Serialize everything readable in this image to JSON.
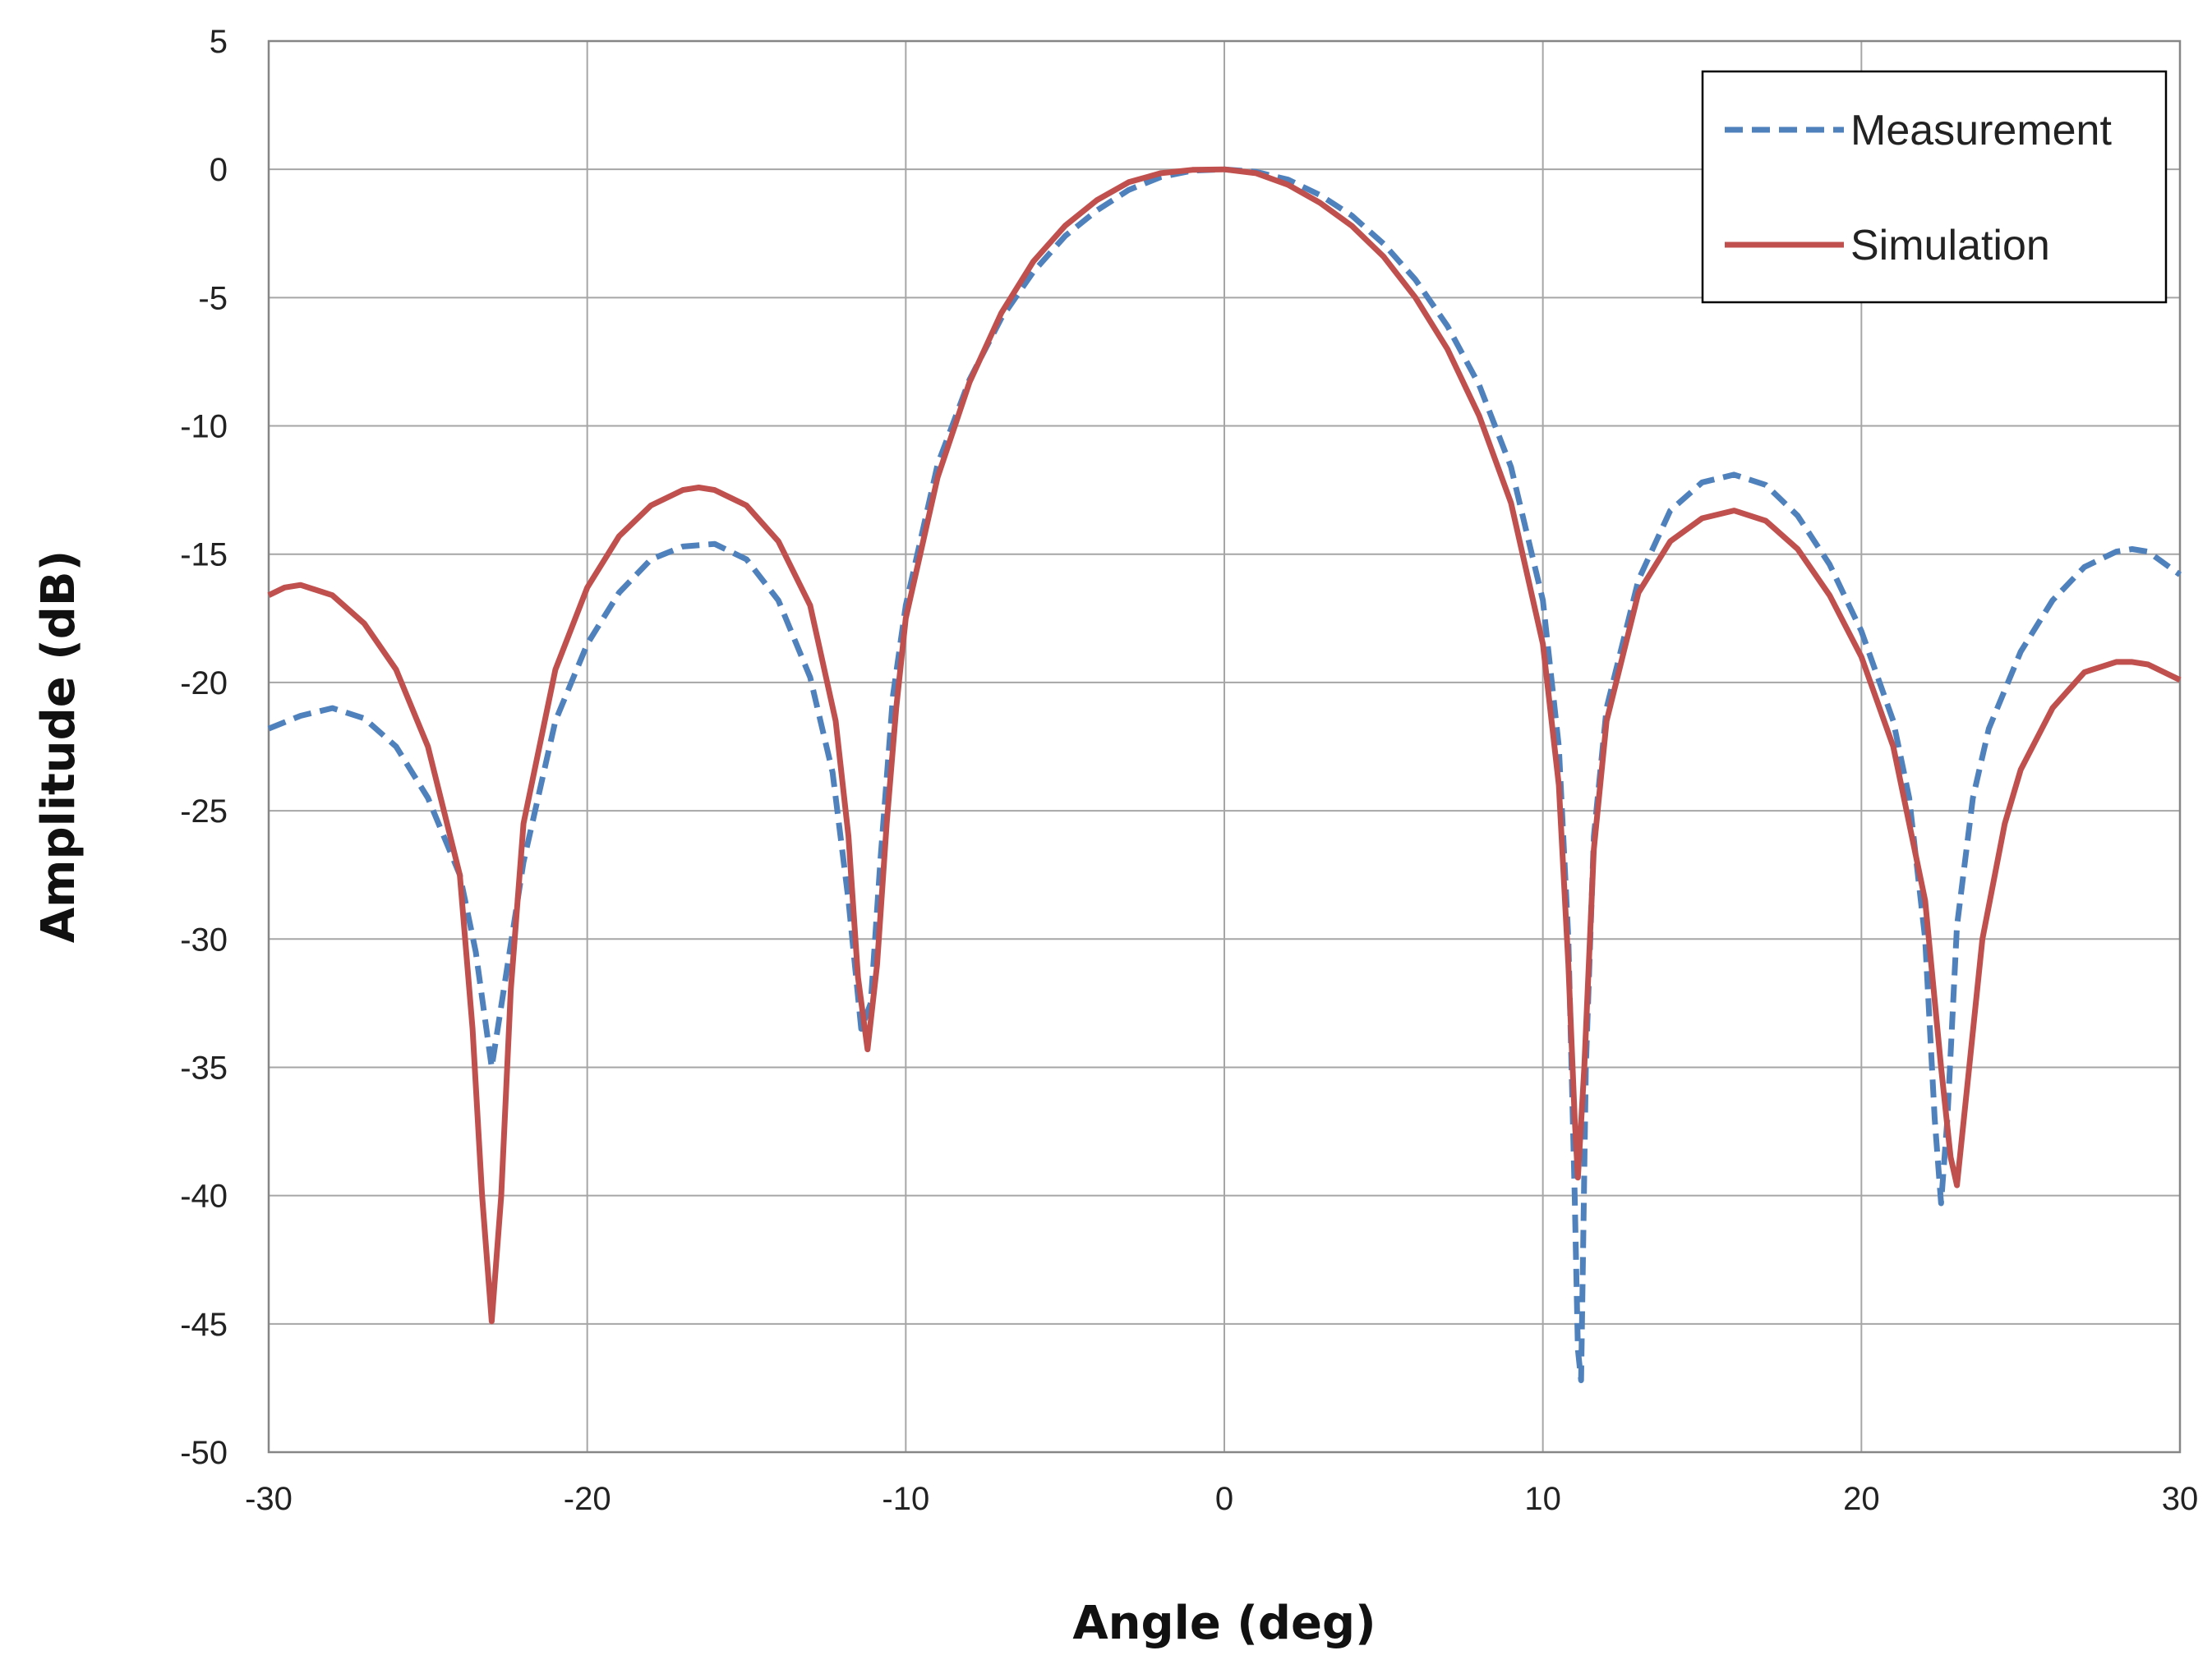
{
  "chart_data": {
    "type": "line",
    "title": "",
    "xlabel": "Angle (deg)",
    "ylabel": "Amplitude (dB)",
    "xlim": [
      -30,
      30
    ],
    "ylim": [
      -50,
      5
    ],
    "xticks": [
      -30,
      -20,
      -10,
      0,
      10,
      20,
      30
    ],
    "yticks": [
      5,
      0,
      -5,
      -10,
      -15,
      -20,
      -25,
      -30,
      -35,
      -40,
      -45,
      -50
    ],
    "grid": true,
    "legend_position": "top-right",
    "series": [
      {
        "name": "Measurement",
        "color": "#4f81bd",
        "style": "dashed",
        "points": [
          [
            -30,
            -21.8
          ],
          [
            -29,
            -21.3
          ],
          [
            -28,
            -21.0
          ],
          [
            -27,
            -21.4
          ],
          [
            -26,
            -22.5
          ],
          [
            -25,
            -24.5
          ],
          [
            -24,
            -27.5
          ],
          [
            -23.5,
            -30.5
          ],
          [
            -23.0,
            -35.0
          ],
          [
            -22.5,
            -31.0
          ],
          [
            -22,
            -27.0
          ],
          [
            -21,
            -21.5
          ],
          [
            -20,
            -18.5
          ],
          [
            -19,
            -16.5
          ],
          [
            -18,
            -15.2
          ],
          [
            -17,
            -14.7
          ],
          [
            -16,
            -14.6
          ],
          [
            -15,
            -15.2
          ],
          [
            -14,
            -16.8
          ],
          [
            -13,
            -19.8
          ],
          [
            -12.3,
            -23.5
          ],
          [
            -11.8,
            -28.5
          ],
          [
            -11.4,
            -33.5
          ],
          [
            -11.1,
            -32.5
          ],
          [
            -10.8,
            -27.0
          ],
          [
            -10.4,
            -20.5
          ],
          [
            -10,
            -17.0
          ],
          [
            -9,
            -11.5
          ],
          [
            -8,
            -8.2
          ],
          [
            -7,
            -5.8
          ],
          [
            -6,
            -4.0
          ],
          [
            -5,
            -2.6
          ],
          [
            -4,
            -1.6
          ],
          [
            -3,
            -0.8
          ],
          [
            -2,
            -0.3
          ],
          [
            -1,
            -0.05
          ],
          [
            0,
            0
          ],
          [
            1,
            -0.1
          ],
          [
            2,
            -0.4
          ],
          [
            3,
            -1.0
          ],
          [
            4,
            -1.8
          ],
          [
            5,
            -2.9
          ],
          [
            6,
            -4.3
          ],
          [
            7,
            -6.1
          ],
          [
            8,
            -8.4
          ],
          [
            9,
            -11.6
          ],
          [
            10,
            -16.8
          ],
          [
            10.5,
            -22.5
          ],
          [
            10.8,
            -30.0
          ],
          [
            11.0,
            -40.0
          ],
          [
            11.1,
            -46.0
          ],
          [
            11.2,
            -47.2
          ],
          [
            11.35,
            -35.0
          ],
          [
            11.6,
            -26.0
          ],
          [
            12,
            -21.0
          ],
          [
            13,
            -16.0
          ],
          [
            14,
            -13.3
          ],
          [
            15,
            -12.2
          ],
          [
            16,
            -11.9
          ],
          [
            17,
            -12.3
          ],
          [
            18,
            -13.5
          ],
          [
            19,
            -15.4
          ],
          [
            20,
            -18.0
          ],
          [
            21,
            -21.5
          ],
          [
            21.5,
            -24.5
          ],
          [
            22.0,
            -30.0
          ],
          [
            22.3,
            -37.0
          ],
          [
            22.5,
            -40.3
          ],
          [
            22.7,
            -37.0
          ],
          [
            23.0,
            -29.5
          ],
          [
            23.5,
            -24.5
          ],
          [
            24,
            -21.8
          ],
          [
            25,
            -18.8
          ],
          [
            26,
            -16.8
          ],
          [
            27,
            -15.5
          ],
          [
            28,
            -14.9
          ],
          [
            28.5,
            -14.8
          ],
          [
            29,
            -14.9
          ],
          [
            30,
            -15.8
          ]
        ]
      },
      {
        "name": "Simulation",
        "color": "#c0504d",
        "style": "solid",
        "points": [
          [
            -30,
            -16.6
          ],
          [
            -29.5,
            -16.3
          ],
          [
            -29,
            -16.2
          ],
          [
            -28,
            -16.6
          ],
          [
            -27,
            -17.7
          ],
          [
            -26,
            -19.5
          ],
          [
            -25,
            -22.5
          ],
          [
            -24,
            -27.5
          ],
          [
            -23.6,
            -33.5
          ],
          [
            -23.3,
            -40.0
          ],
          [
            -23.0,
            -44.9
          ],
          [
            -22.7,
            -40.0
          ],
          [
            -22.4,
            -32.0
          ],
          [
            -22,
            -25.5
          ],
          [
            -21,
            -19.5
          ],
          [
            -20,
            -16.3
          ],
          [
            -19,
            -14.3
          ],
          [
            -18,
            -13.1
          ],
          [
            -17,
            -12.5
          ],
          [
            -16.5,
            -12.4
          ],
          [
            -16,
            -12.5
          ],
          [
            -15,
            -13.1
          ],
          [
            -14,
            -14.5
          ],
          [
            -13,
            -17.0
          ],
          [
            -12.2,
            -21.5
          ],
          [
            -11.8,
            -26.0
          ],
          [
            -11.5,
            -31.5
          ],
          [
            -11.2,
            -34.3
          ],
          [
            -10.9,
            -31.0
          ],
          [
            -10.6,
            -25.5
          ],
          [
            -10.3,
            -21.0
          ],
          [
            -10,
            -17.5
          ],
          [
            -9,
            -12.0
          ],
          [
            -8,
            -8.3
          ],
          [
            -7,
            -5.6
          ],
          [
            -6,
            -3.6
          ],
          [
            -5,
            -2.2
          ],
          [
            -4,
            -1.2
          ],
          [
            -3,
            -0.5
          ],
          [
            -2,
            -0.15
          ],
          [
            -1,
            -0.02
          ],
          [
            0,
            0
          ],
          [
            1,
            -0.15
          ],
          [
            2,
            -0.6
          ],
          [
            3,
            -1.3
          ],
          [
            4,
            -2.2
          ],
          [
            5,
            -3.4
          ],
          [
            6,
            -5.0
          ],
          [
            7,
            -7.0
          ],
          [
            8,
            -9.6
          ],
          [
            9,
            -13.0
          ],
          [
            10,
            -18.5
          ],
          [
            10.5,
            -24.0
          ],
          [
            10.8,
            -31.0
          ],
          [
            11.0,
            -37.0
          ],
          [
            11.1,
            -39.3
          ],
          [
            11.3,
            -35.0
          ],
          [
            11.6,
            -26.5
          ],
          [
            12,
            -21.5
          ],
          [
            13,
            -16.5
          ],
          [
            14,
            -14.5
          ],
          [
            15,
            -13.6
          ],
          [
            16,
            -13.3
          ],
          [
            17,
            -13.7
          ],
          [
            18,
            -14.8
          ],
          [
            19,
            -16.6
          ],
          [
            20,
            -19.0
          ],
          [
            21,
            -22.5
          ],
          [
            22,
            -28.5
          ],
          [
            22.5,
            -35.0
          ],
          [
            22.8,
            -38.5
          ],
          [
            23.0,
            -39.6
          ],
          [
            23.3,
            -36.0
          ],
          [
            23.8,
            -30.0
          ],
          [
            24.5,
            -25.5
          ],
          [
            25,
            -23.4
          ],
          [
            26,
            -21.0
          ],
          [
            27,
            -19.6
          ],
          [
            28,
            -19.2
          ],
          [
            28.5,
            -19.2
          ],
          [
            29,
            -19.3
          ],
          [
            30,
            -19.9
          ]
        ]
      }
    ]
  }
}
